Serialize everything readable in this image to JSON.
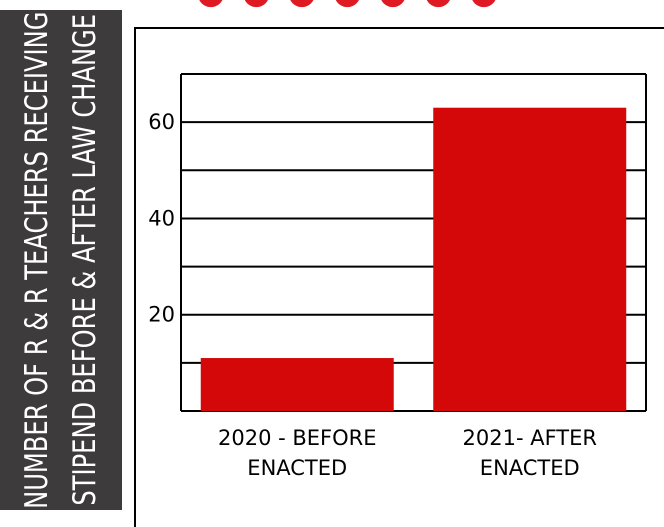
{
  "chart_data": {
    "type": "bar",
    "categories": [
      [
        "2020 - BEFORE",
        "ENACTED"
      ],
      [
        "2021- AFTER",
        "ENACTED"
      ]
    ],
    "values": [
      11,
      63
    ],
    "ylabel_lines": [
      "NUMBER OF R & R TEACHERS RECEIVING",
      "STIPEND BEFORE & AFTER LAW CHANGE"
    ],
    "ylim": [
      0,
      70
    ],
    "yticks": [
      20,
      40,
      60
    ],
    "gridlines": [
      10,
      20,
      30,
      40,
      50,
      60,
      70
    ],
    "grid": true,
    "legend": "none",
    "bar_color": "#d40808"
  }
}
